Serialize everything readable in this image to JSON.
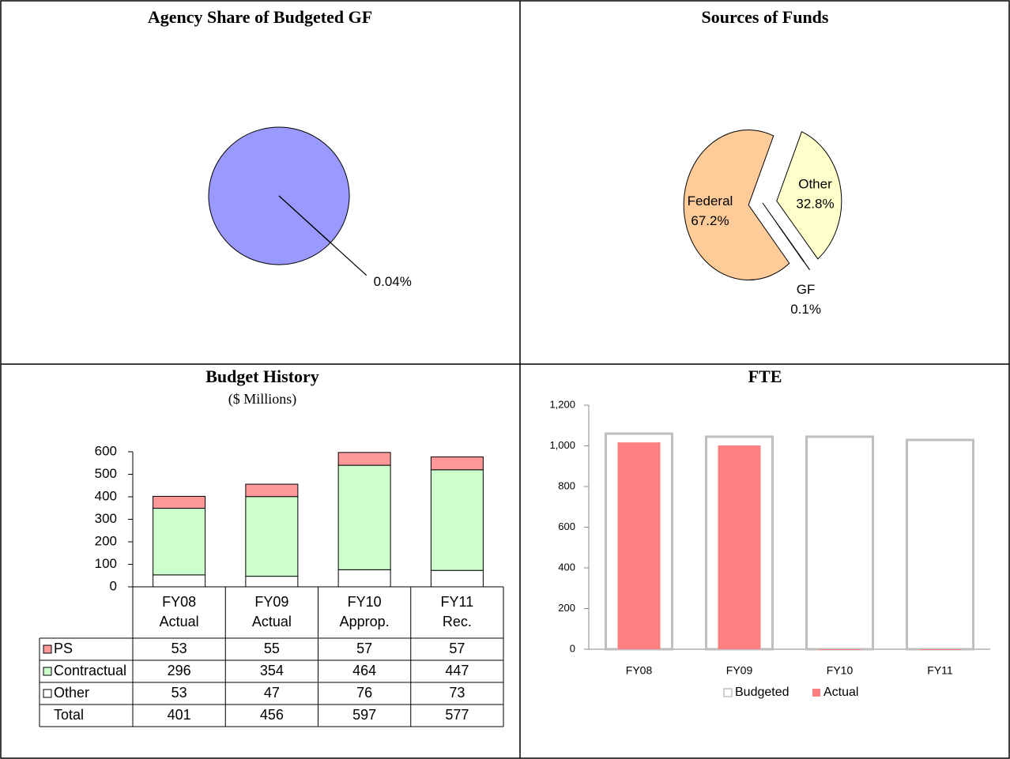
{
  "chart_data": [
    {
      "type": "pie",
      "title": "Agency Share of Budgeted GF",
      "values": [
        99.96,
        0.04
      ],
      "value_labels": [
        null,
        "0.04%"
      ],
      "colors": [
        "#9999ff",
        "#9999ff"
      ]
    },
    {
      "type": "pie",
      "title": "Sources of Funds",
      "categories": [
        "Federal",
        "Other",
        "GF"
      ],
      "values": [
        67.2,
        32.8,
        0.1
      ],
      "value_labels": [
        "67.2%",
        "32.8%",
        "0.1%"
      ],
      "colors": [
        "#ffcc99",
        "#ffffcc",
        "#9999ff"
      ],
      "exploded": true
    },
    {
      "type": "bar",
      "stacked": true,
      "data_table": true,
      "title": "Budget History",
      "subtitle": "($ Millions)",
      "categories": [
        "FY08\nActual",
        "FY09\nActual",
        "FY10\nApprop.",
        "FY11\nRec."
      ],
      "series": [
        {
          "name": "PS",
          "color": "#ff9999",
          "values": [
            53,
            55,
            57,
            57
          ]
        },
        {
          "name": "Contractual",
          "color": "#ccffcc",
          "values": [
            296,
            354,
            464,
            447
          ]
        },
        {
          "name": "Other",
          "color": "#ffffff",
          "values": [
            53,
            47,
            76,
            73
          ]
        }
      ],
      "total": {
        "name": "Total",
        "values": [
          401,
          456,
          597,
          577
        ]
      },
      "ylim": [
        0,
        600
      ],
      "yticks": [
        0,
        100,
        200,
        300,
        400,
        500,
        600
      ]
    },
    {
      "type": "bar",
      "overlap": true,
      "title": "FTE",
      "categories": [
        "FY08",
        "FY09",
        "FY10",
        "FY11"
      ],
      "series": [
        {
          "name": "Budgeted",
          "color": "#ffffff",
          "edge": "#bfbfbf",
          "values": [
            1060,
            1045,
            1045,
            1029
          ]
        },
        {
          "name": "Actual",
          "color": "#ff8080",
          "values": [
            1017,
            1002,
            0,
            0
          ]
        }
      ],
      "ylim": [
        0,
        1200
      ],
      "yticks": [
        0,
        200,
        400,
        600,
        800,
        {
          "value": 1000,
          "label": "1,000"
        },
        {
          "value": 1200,
          "label": "1,200"
        }
      ],
      "legend": "bottom"
    }
  ]
}
